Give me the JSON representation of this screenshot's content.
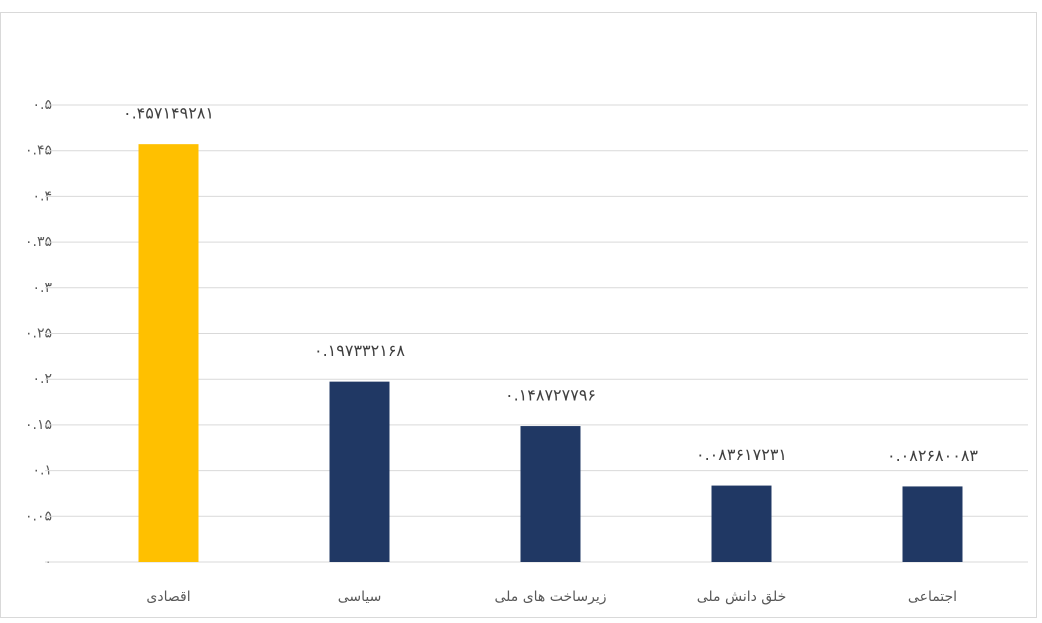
{
  "chart_data": {
    "type": "bar",
    "categories": [
      "اقصادی",
      "سیاسی",
      "زیرساخت های ملی",
      "خلق دانش ملی",
      "اجتماعی"
    ],
    "values": [
      0.457149281,
      0.197332168,
      0.148727796,
      0.083617231,
      0.082680083
    ],
    "value_labels": [
      "۰.۴۵۷۱۴۹۲۸۱",
      "۰.۱۹۷۳۳۲۱۶۸",
      "۰.۱۴۸۷۲۷۷۹۶",
      "۰.۰۸۳۶۱۷۲۳۱",
      "۰.۰۸۲۶۸۰۰۸۳"
    ],
    "colors": [
      "#ffc000",
      "#203864",
      "#203864",
      "#203864",
      "#203864"
    ],
    "ylim": [
      0,
      0.5
    ],
    "yticks": [
      {
        "value": 0,
        "label": "۰"
      },
      {
        "value": 0.05,
        "label": "۰.۰۵"
      },
      {
        "value": 0.1,
        "label": "۰.۱"
      },
      {
        "value": 0.15,
        "label": "۰.۱۵"
      },
      {
        "value": 0.2,
        "label": "۰.۲"
      },
      {
        "value": 0.25,
        "label": "۰.۲۵"
      },
      {
        "value": 0.3,
        "label": "۰.۳"
      },
      {
        "value": 0.35,
        "label": "۰.۳۵"
      },
      {
        "value": 0.4,
        "label": "۰.۴"
      },
      {
        "value": 0.45,
        "label": "۰.۴۵"
      },
      {
        "value": 0.5,
        "label": "۰.۵"
      }
    ],
    "grid": true
  }
}
